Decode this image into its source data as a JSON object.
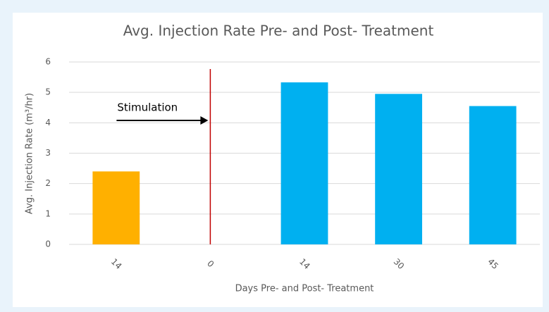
{
  "chart_data": {
    "type": "bar",
    "title": "Avg. Injection Rate Pre- and Post- Treatment",
    "x_label": "Days Pre- and Post- Treatment",
    "y_label": "Avg. Injection Rate (m³/hr)",
    "categories": [
      "14",
      "0",
      "14",
      "30",
      "45"
    ],
    "values": [
      2.4,
      null,
      5.33,
      4.95,
      4.55
    ],
    "colors": [
      "#ffb000",
      null,
      "#00b0f0",
      "#00b0f0",
      "#00b0f0"
    ],
    "ylim": [
      0,
      6
    ],
    "yticks": [
      0,
      1,
      2,
      3,
      4,
      5,
      6
    ],
    "grid": true,
    "annotation": "Stimulation",
    "vline_color": "#c00000"
  }
}
